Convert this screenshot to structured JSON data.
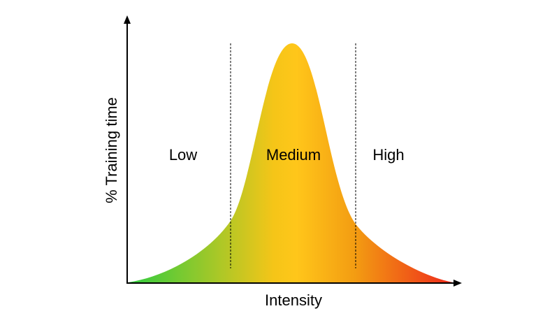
{
  "diagram": {
    "x_axis_label": "Intensity",
    "y_axis_label": "% Training time",
    "zones": [
      {
        "label": "Low"
      },
      {
        "label": "Medium"
      },
      {
        "label": "High"
      }
    ],
    "curve_gradient": [
      "#2ecc40",
      "#f5c518",
      "#ffc61a",
      "#f39c12",
      "#ee2a1b"
    ],
    "axis_color": "#000000",
    "divider_style": "dashed"
  }
}
